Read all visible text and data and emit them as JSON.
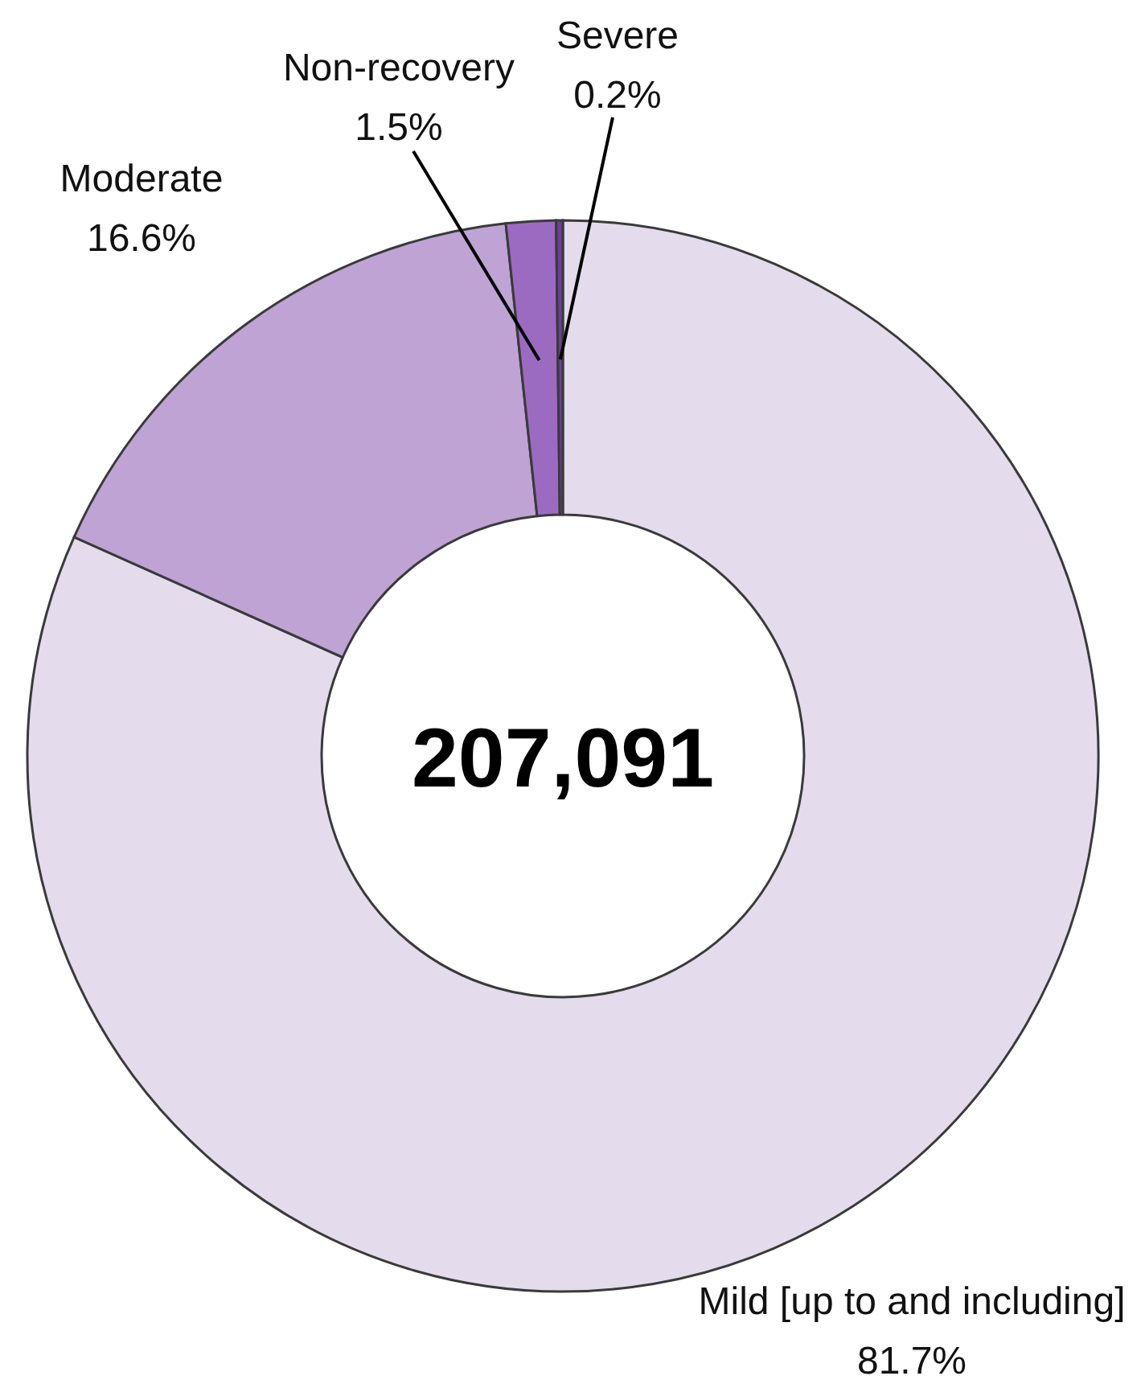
{
  "chart_data": {
    "type": "donut",
    "categories": [
      "Mild [up to and including]",
      "Moderate",
      "Non-recovery",
      "Severe"
    ],
    "values": [
      81.7,
      16.6,
      1.5,
      0.2
    ],
    "colors": [
      "#e4dcec",
      "#bea3d4",
      "#9b6bc2",
      "#6b3f99"
    ],
    "value_labels": [
      "81.7%",
      "16.6%",
      "1.5%",
      "0.2%"
    ],
    "annotations": [
      "207,091"
    ]
  }
}
